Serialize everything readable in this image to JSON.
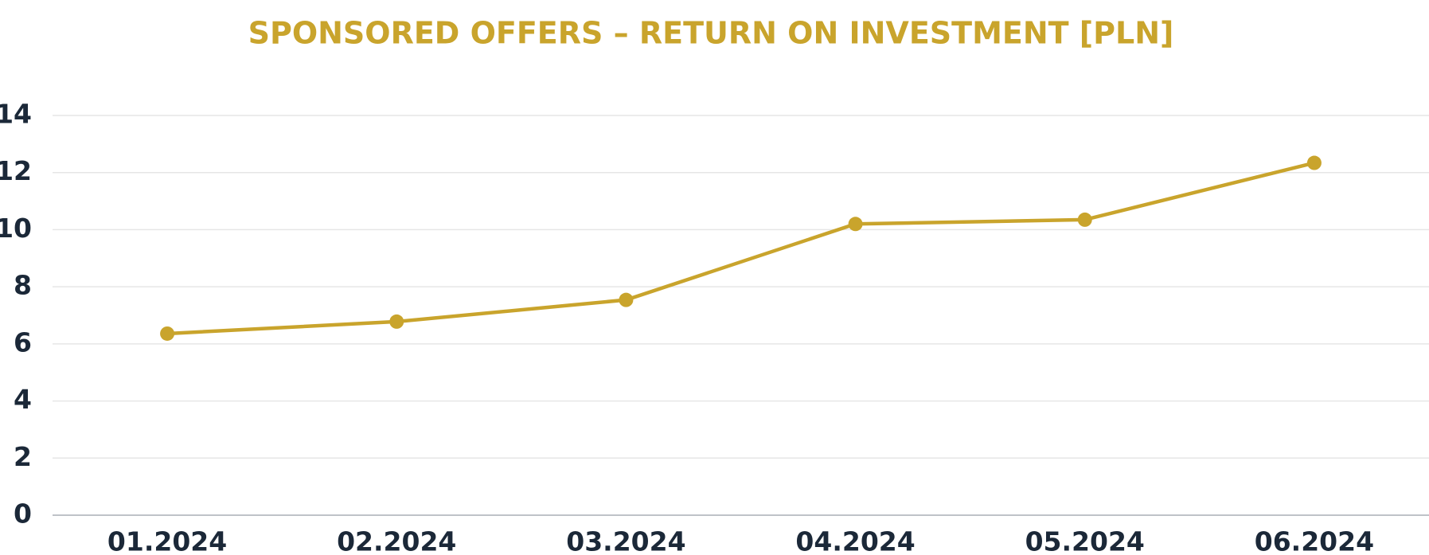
{
  "chart_data": {
    "type": "line",
    "title": "SPONSORED OFFERS – RETURN ON INVESTMENT [PLN]",
    "categories": [
      "01.2024",
      "02.2024",
      "03.2024",
      "04.2024",
      "05.2024",
      "06.2024"
    ],
    "values": [
      6.36,
      6.78,
      7.54,
      10.2,
      10.35,
      12.34
    ],
    "color": "#c9a42c",
    "ylim": [
      0,
      14
    ],
    "yticks": [
      0,
      2,
      4,
      6,
      8,
      10,
      12,
      14
    ],
    "grid": true
  }
}
